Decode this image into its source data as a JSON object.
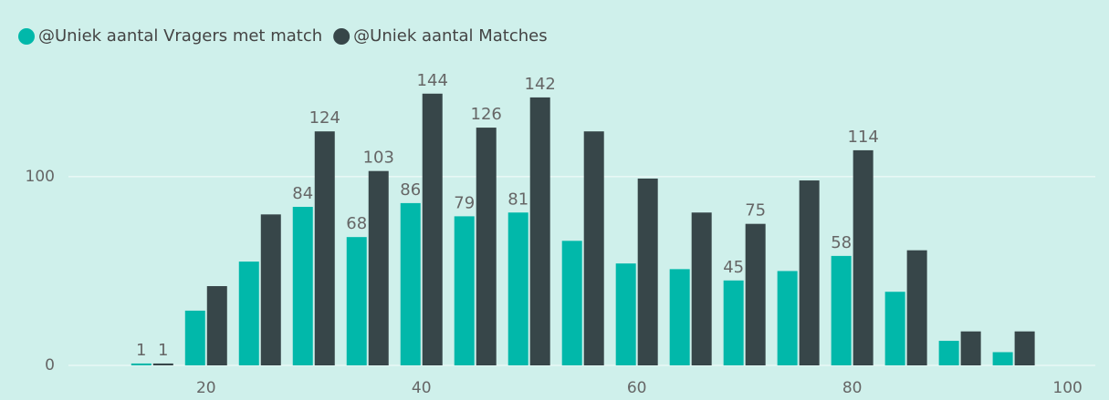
{
  "chart_data": {
    "type": "bar",
    "x": [
      15,
      20,
      25,
      30,
      35,
      40,
      45,
      50,
      55,
      60,
      65,
      70,
      75,
      80,
      85,
      90,
      95
    ],
    "series": [
      {
        "name": "@Uniek aantal Vragers met match",
        "color": "#01b8aa",
        "values": [
          1,
          29,
          55,
          84,
          68,
          86,
          79,
          81,
          66,
          54,
          51,
          45,
          50,
          58,
          39,
          13,
          7
        ],
        "value_labels": [
          "1",
          null,
          null,
          "84",
          "68",
          "86",
          "79",
          "81",
          null,
          null,
          null,
          "45",
          null,
          "58",
          null,
          null,
          null
        ]
      },
      {
        "name": "@Uniek aantal Matches",
        "color": "#374649",
        "values": [
          1,
          42,
          80,
          124,
          103,
          144,
          126,
          142,
          124,
          99,
          81,
          75,
          98,
          114,
          61,
          18,
          18
        ],
        "value_labels": [
          "1",
          null,
          null,
          "124",
          "103",
          "144",
          "126",
          "142",
          null,
          null,
          null,
          "75",
          null,
          "114",
          null,
          null,
          null
        ]
      }
    ],
    "xlim": [
      9,
      103
    ],
    "xticks": [
      20,
      40,
      60,
      80,
      100
    ],
    "ylim": [
      0,
      155
    ],
    "yticks": [
      0,
      100
    ],
    "grid": true,
    "legend": "top-left"
  }
}
